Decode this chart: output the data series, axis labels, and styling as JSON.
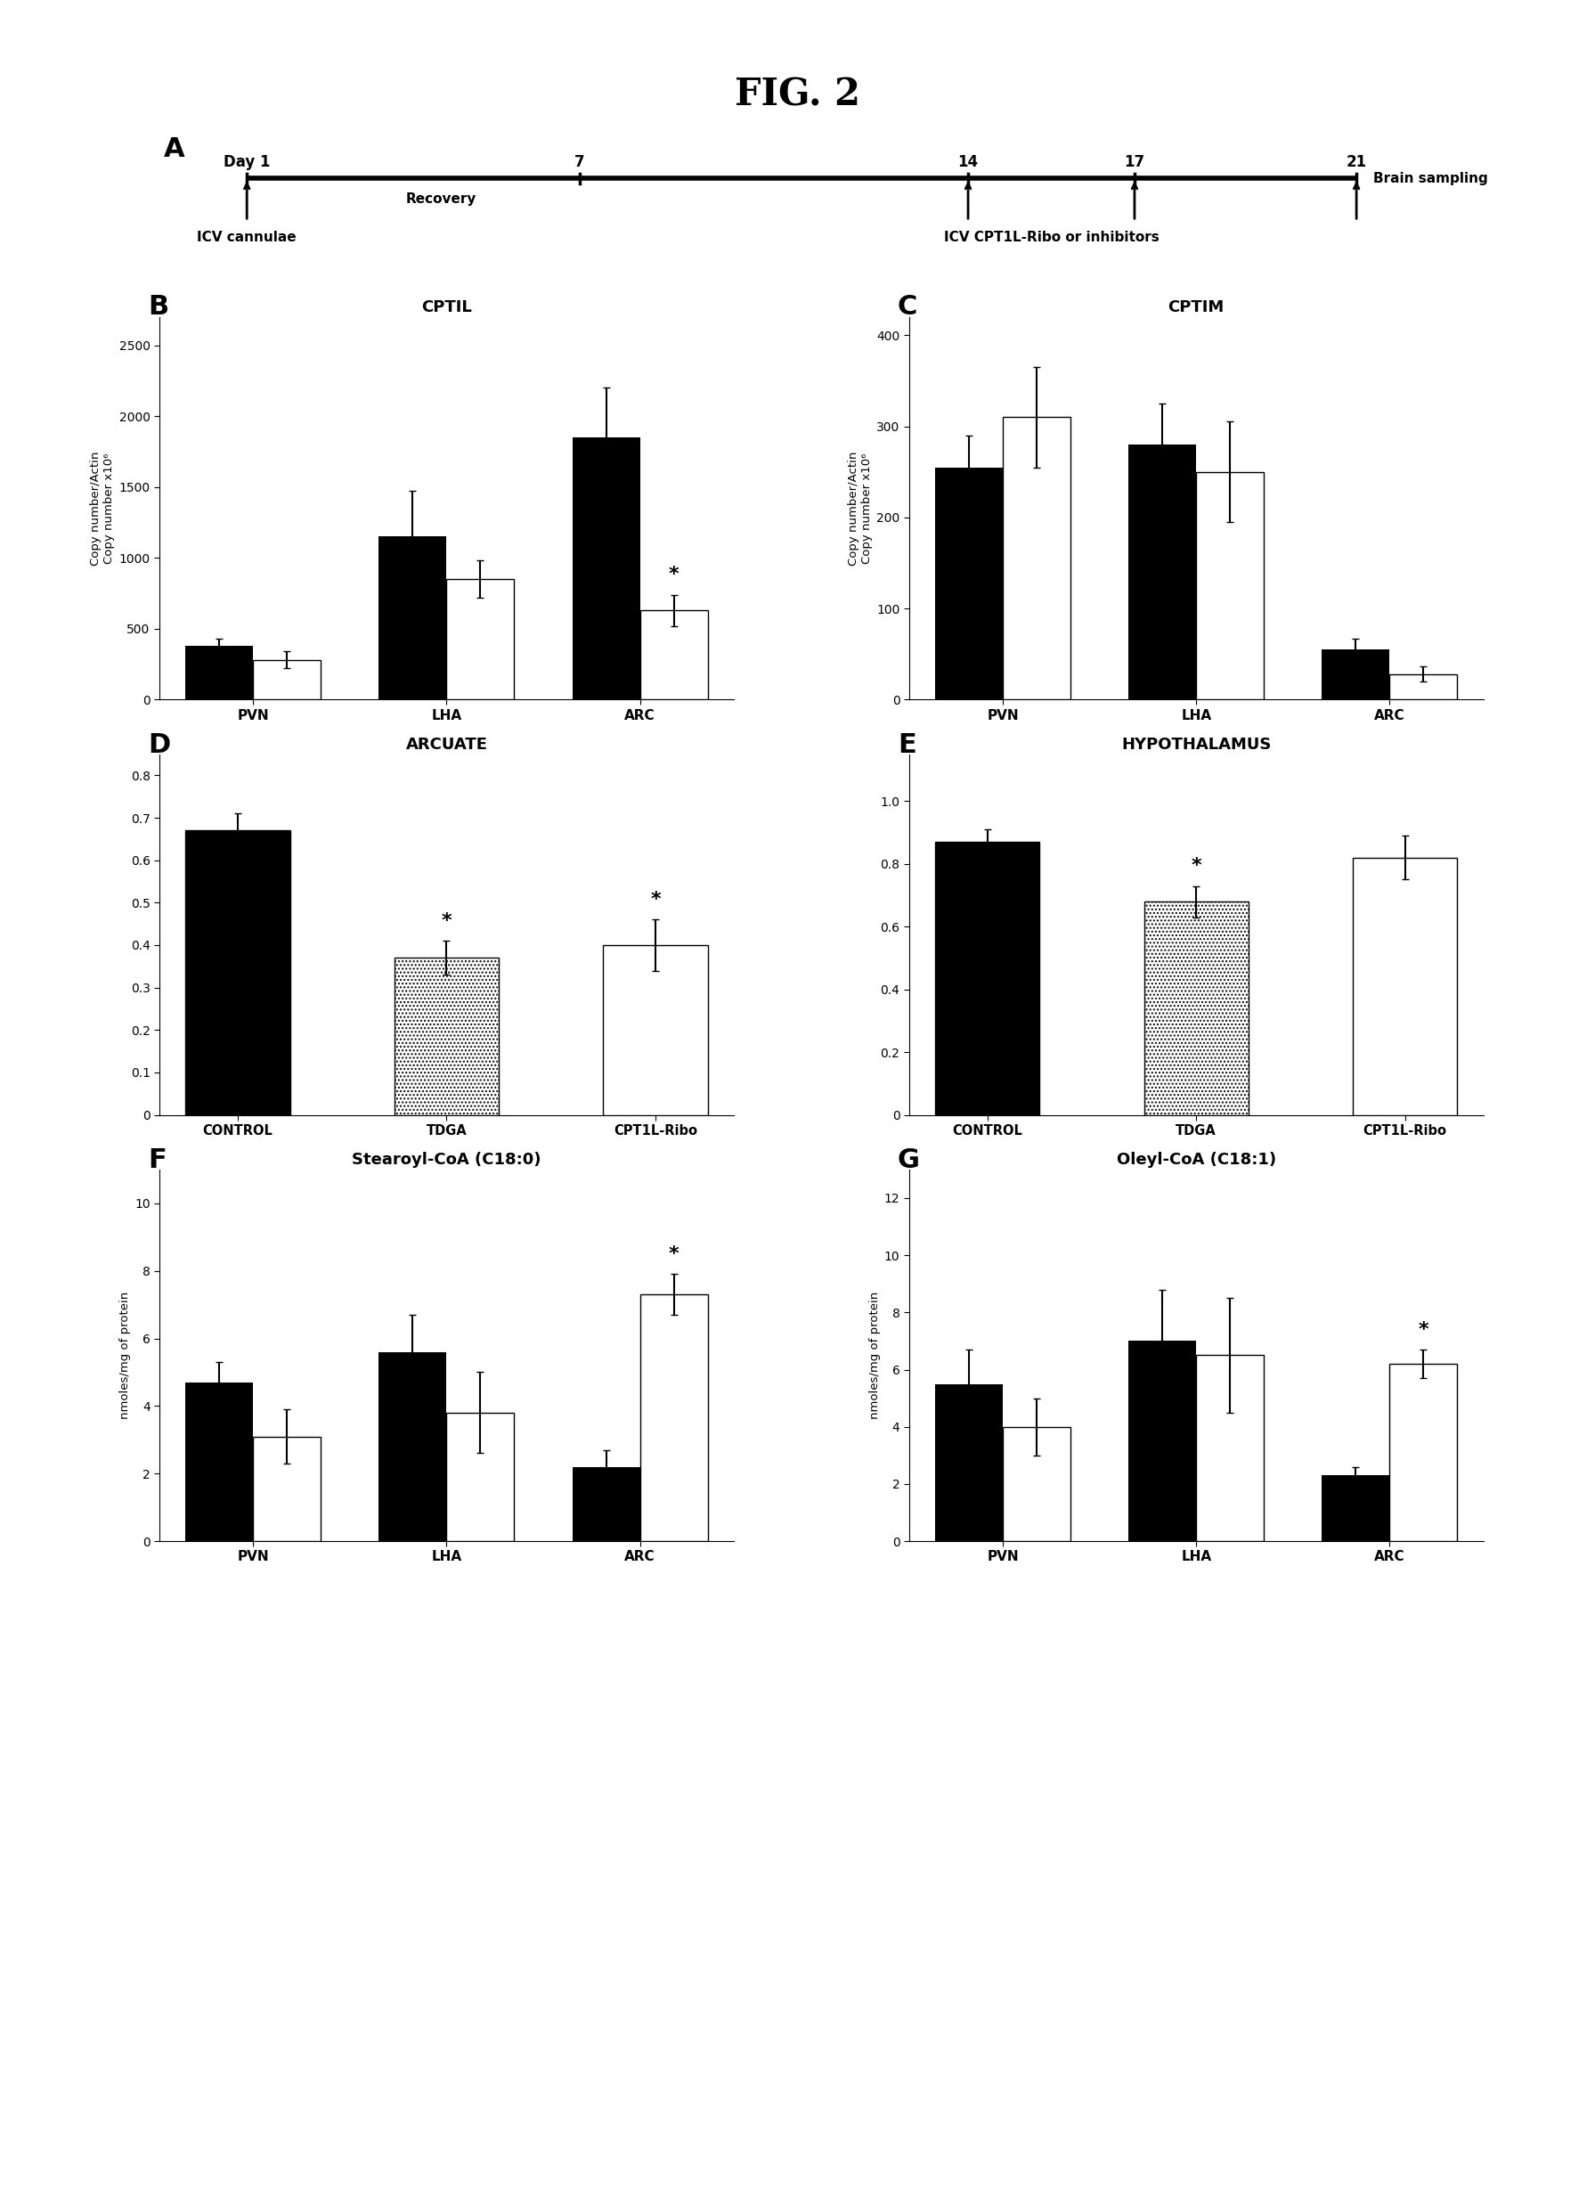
{
  "fig_title": "FIG. 2",
  "panel_B": {
    "title": "CPTIL",
    "ylabel": "Copy number/Actin\nCopy number x10⁶",
    "categories": [
      "PVN",
      "LHA",
      "ARC"
    ],
    "black_values": [
      380,
      1150,
      1850
    ],
    "white_values": [
      280,
      850,
      630
    ],
    "black_errors": [
      50,
      320,
      350
    ],
    "white_errors": [
      60,
      130,
      110
    ],
    "ylim": [
      0,
      2700
    ],
    "yticks": [
      0,
      500,
      1000,
      1500,
      2000,
      2500
    ],
    "sig_arc_white": true
  },
  "panel_C": {
    "title": "CPTIM",
    "ylabel": "Copy number/Actin\nCopy number x10⁶",
    "categories": [
      "PVN",
      "LHA",
      "ARC"
    ],
    "black_values": [
      255,
      280,
      55
    ],
    "white_values": [
      310,
      250,
      28
    ],
    "black_errors": [
      35,
      45,
      12
    ],
    "white_errors": [
      55,
      55,
      8
    ],
    "ylim": [
      0,
      420
    ],
    "yticks": [
      0,
      100,
      200,
      300,
      400
    ]
  },
  "panel_D": {
    "title": "ARCUATE",
    "categories": [
      "CONTROL",
      "TDGA",
      "CPT1L-Ribo"
    ],
    "values": [
      0.67,
      0.37,
      0.4
    ],
    "errors": [
      0.04,
      0.04,
      0.06
    ],
    "ylim": [
      0,
      0.85
    ],
    "yticks": [
      0,
      0.1,
      0.2,
      0.3,
      0.4,
      0.5,
      0.6,
      0.7,
      0.8
    ],
    "sig_markers": [
      1,
      2
    ]
  },
  "panel_E": {
    "title": "HYPOTHALAMUS",
    "categories": [
      "CONTROL",
      "TDGA",
      "CPT1L-Ribo"
    ],
    "values": [
      0.87,
      0.68,
      0.82
    ],
    "errors": [
      0.04,
      0.05,
      0.07
    ],
    "ylim": [
      0,
      1.15
    ],
    "yticks": [
      0,
      0.2,
      0.4,
      0.6,
      0.8,
      1.0
    ],
    "sig_markers": [
      1
    ]
  },
  "panel_F": {
    "title": "Stearoyl-CoA (C18:0)",
    "ylabel": "nmoles/mg of protein",
    "categories": [
      "PVN",
      "LHA",
      "ARC"
    ],
    "black_values": [
      4.7,
      5.6,
      2.2
    ],
    "white_values": [
      3.1,
      3.8,
      7.3
    ],
    "black_errors": [
      0.6,
      1.1,
      0.5
    ],
    "white_errors": [
      0.8,
      1.2,
      0.6
    ],
    "ylim": [
      0,
      11
    ],
    "yticks": [
      0,
      2,
      4,
      6,
      8,
      10
    ],
    "sig_arc_white": true
  },
  "panel_G": {
    "title": "Oleyl-CoA (C18:1)",
    "ylabel": "nmoles/mg of protein",
    "categories": [
      "PVN",
      "LHA",
      "ARC"
    ],
    "black_values": [
      5.5,
      7.0,
      2.3
    ],
    "white_values": [
      4.0,
      6.5,
      6.2
    ],
    "black_errors": [
      1.2,
      1.8,
      0.3
    ],
    "white_errors": [
      1.0,
      2.0,
      0.5
    ],
    "ylim": [
      0,
      13
    ],
    "yticks": [
      0,
      2,
      4,
      6,
      8,
      10,
      12
    ],
    "sig_arc_white": true
  }
}
